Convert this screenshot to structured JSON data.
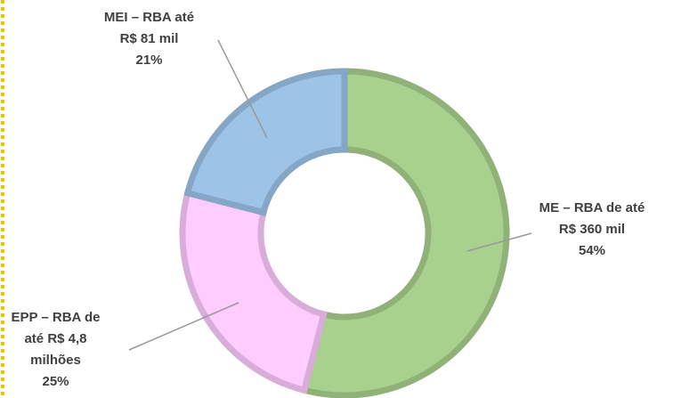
{
  "chart_data": {
    "type": "donut",
    "categories": [
      "ME – RBA de até\nR$ 360 mil",
      "EPP – RBA de\naté R$ 4,8\nmilhões",
      "MEI – RBA até\nR$ 81 mil"
    ],
    "values": [
      54,
      25,
      21
    ],
    "value_labels": [
      "54%",
      "25%",
      "21%"
    ],
    "colors": [
      "#a9d18e",
      "#ffccff",
      "#9dc3e6"
    ]
  }
}
